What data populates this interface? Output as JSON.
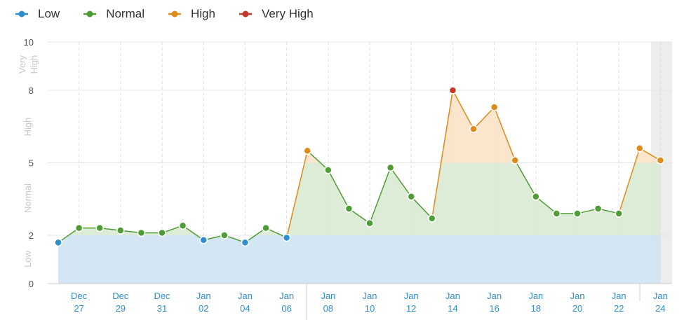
{
  "legend": [
    {
      "label": "Low",
      "color": "#2f8fce"
    },
    {
      "label": "Normal",
      "color": "#4e9c35"
    },
    {
      "label": "High",
      "color": "#e08b18"
    },
    {
      "label": "Very High",
      "color": "#c0392b"
    }
  ],
  "chart_data": {
    "type": "line",
    "x": [
      "Dec 26",
      "Dec 27",
      "Dec 28",
      "Dec 29",
      "Dec 30",
      "Dec 31",
      "Jan 01",
      "Jan 02",
      "Jan 03",
      "Jan 04",
      "Jan 05",
      "Jan 06",
      "Jan 07",
      "Jan 08",
      "Jan 09",
      "Jan 10",
      "Jan 11",
      "Jan 12",
      "Jan 13",
      "Jan 14",
      "Jan 15",
      "Jan 16",
      "Jan 17",
      "Jan 18",
      "Jan 19",
      "Jan 20",
      "Jan 21",
      "Jan 22",
      "Jan 23",
      "Jan 24"
    ],
    "values": [
      1.7,
      2.3,
      2.3,
      2.2,
      2.1,
      2.1,
      2.4,
      1.8,
      2.0,
      1.7,
      2.3,
      1.9,
      5.5,
      4.7,
      3.1,
      2.5,
      4.8,
      3.6,
      2.7,
      8.0,
      6.4,
      7.3,
      5.1,
      3.6,
      2.9,
      2.9,
      3.1,
      2.9,
      5.6,
      5.1
    ],
    "categories": [
      "Low",
      "Normal",
      "Normal",
      "Normal",
      "Normal",
      "Normal",
      "Normal",
      "Low",
      "Normal",
      "Low",
      "Normal",
      "Low",
      "High",
      "Normal",
      "Normal",
      "Normal",
      "Normal",
      "Normal",
      "Normal",
      "Very High",
      "High",
      "High",
      "High",
      "Normal",
      "Normal",
      "Normal",
      "Normal",
      "Normal",
      "High",
      "High"
    ],
    "ylim": [
      0,
      10
    ],
    "y_ticks": [
      "0",
      "2",
      "5",
      "8",
      "10"
    ],
    "zone_labels": [
      "Low",
      "Normal",
      "High",
      "Very High"
    ],
    "x_tick_labels": [
      {
        "month": "Dec",
        "day": "27"
      },
      {
        "month": "Dec",
        "day": "29"
      },
      {
        "month": "Dec",
        "day": "31"
      },
      {
        "month": "Jan",
        "day": "02"
      },
      {
        "month": "Jan",
        "day": "04"
      },
      {
        "month": "Jan",
        "day": "06"
      },
      {
        "month": "Jan",
        "day": "08"
      },
      {
        "month": "Jan",
        "day": "10"
      },
      {
        "month": "Jan",
        "day": "12"
      },
      {
        "month": "Jan",
        "day": "14"
      },
      {
        "month": "Jan",
        "day": "16"
      },
      {
        "month": "Jan",
        "day": "18"
      },
      {
        "month": "Jan",
        "day": "20"
      },
      {
        "month": "Jan",
        "day": "22"
      },
      {
        "month": "Jan",
        "day": "24"
      }
    ],
    "grid": true,
    "legend_position": "top-left"
  }
}
